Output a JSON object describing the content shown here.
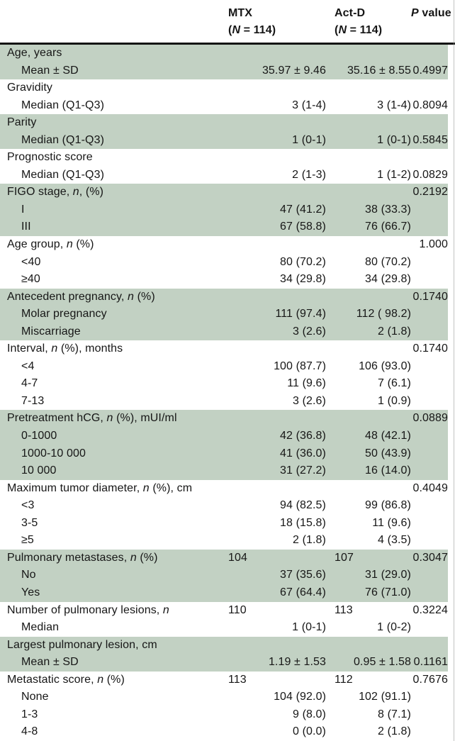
{
  "table": {
    "header": {
      "mtx_line1": "MTX",
      "mtx_line2": "(N = 114)",
      "actd_line1": "Act-D",
      "actd_line2": "(N = 114)",
      "p_label": "P value"
    },
    "colors": {
      "shaded_row_bg": "#c2d1c3",
      "header_rule": "#141414",
      "text": "#161616"
    },
    "groups": [
      {
        "shaded": true,
        "rows": [
          {
            "label": "Age, years",
            "indent": 0,
            "mtx": "",
            "actd": "",
            "p": ""
          },
          {
            "label": "Mean ± SD",
            "indent": 1,
            "mtx": "35.97 ± 9.46",
            "actd": "35.16 ± 8.55",
            "p": "0.4997"
          }
        ]
      },
      {
        "shaded": false,
        "rows": [
          {
            "label": "Gravidity",
            "indent": 0,
            "mtx": "",
            "actd": "",
            "p": ""
          },
          {
            "label": "Median (Q1-Q3)",
            "indent": 1,
            "mtx": "3 (1-4)",
            "actd": "3 (1-4)",
            "p": "0.8094"
          }
        ]
      },
      {
        "shaded": true,
        "rows": [
          {
            "label": "Parity",
            "indent": 0,
            "mtx": "",
            "actd": "",
            "p": ""
          },
          {
            "label": "Median (Q1-Q3)",
            "indent": 1,
            "mtx": "1 (0-1)",
            "actd": "1 (0-1)",
            "p": "0.5845"
          }
        ]
      },
      {
        "shaded": false,
        "rows": [
          {
            "label": "Prognostic score",
            "indent": 0,
            "mtx": "",
            "actd": "",
            "p": ""
          },
          {
            "label": "Median (Q1-Q3)",
            "indent": 1,
            "mtx": "2 (1-3)",
            "actd": "1 (1-2)",
            "p": "0.0829"
          }
        ]
      },
      {
        "shaded": true,
        "rows": [
          {
            "label": "FIGO stage, n, (%)",
            "indent": 0,
            "mtx": "",
            "actd": "",
            "p": "0.2192"
          },
          {
            "label": "I",
            "indent": 1,
            "mtx": "47 (41.2)",
            "actd": "38 (33.3)",
            "p": ""
          },
          {
            "label": "III",
            "indent": 1,
            "mtx": "67 (58.8)",
            "actd": "76 (66.7)",
            "p": ""
          }
        ]
      },
      {
        "shaded": false,
        "rows": [
          {
            "label": "Age group, n (%)",
            "indent": 0,
            "mtx": "",
            "actd": "",
            "p": "1.000"
          },
          {
            "label": "<40",
            "indent": 1,
            "mtx": "80 (70.2)",
            "actd": "80 (70.2)",
            "p": ""
          },
          {
            "label": "≥40",
            "indent": 1,
            "mtx": "34 (29.8)",
            "actd": "34 (29.8)",
            "p": ""
          }
        ]
      },
      {
        "shaded": true,
        "rows": [
          {
            "label": "Antecedent pregnancy, n (%)",
            "indent": 0,
            "mtx": "",
            "actd": "",
            "p": "0.1740"
          },
          {
            "label": "Molar pregnancy",
            "indent": 1,
            "mtx": "111 (97.4)",
            "actd": "112 ( 98.2)",
            "p": ""
          },
          {
            "label": "Miscarriage",
            "indent": 1,
            "mtx": "3 (2.6)",
            "actd": "2 (1.8)",
            "p": ""
          }
        ]
      },
      {
        "shaded": false,
        "rows": [
          {
            "label": "Interval, n (%), months",
            "indent": 0,
            "mtx": "",
            "actd": "",
            "p": "0.1740"
          },
          {
            "label": "<4",
            "indent": 1,
            "mtx": "100 (87.7)",
            "actd": "106 (93.0)",
            "p": ""
          },
          {
            "label": "4-7",
            "indent": 1,
            "mtx": "11 (9.6)",
            "actd": "7 (6.1)",
            "p": ""
          },
          {
            "label": "7-13",
            "indent": 1,
            "mtx": "3 (2.6)",
            "actd": "1 (0.9)",
            "p": ""
          }
        ]
      },
      {
        "shaded": true,
        "rows": [
          {
            "label": "Pretreatment hCG, n (%), mUI/ml",
            "indent": 0,
            "mtx": "",
            "actd": "",
            "p": "0.0889"
          },
          {
            "label": "0-1000",
            "indent": 1,
            "mtx": "42 (36.8)",
            "actd": "48 (42.1)",
            "p": ""
          },
          {
            "label": "1000-10 000",
            "indent": 1,
            "mtx": "41 (36.0)",
            "actd": "50 (43.9)",
            "p": ""
          },
          {
            "label": "10 000",
            "indent": 1,
            "mtx": "31 (27.2)",
            "actd": "16 (14.0)",
            "p": ""
          }
        ]
      },
      {
        "shaded": false,
        "rows": [
          {
            "label": "Maximum tumor diameter, n (%), cm",
            "indent": 0,
            "mtx": "",
            "actd": "",
            "p": "0.4049"
          },
          {
            "label": "<3",
            "indent": 1,
            "mtx": "94 (82.5)",
            "actd": "99 (86.8)",
            "p": ""
          },
          {
            "label": "3-5",
            "indent": 1,
            "mtx": "18 (15.8)",
            "actd": "11 (9.6)",
            "p": ""
          },
          {
            "label": "≥5",
            "indent": 1,
            "mtx": "2 (1.8)",
            "actd": "4 (3.5)",
            "p": ""
          }
        ]
      },
      {
        "shaded": true,
        "rows": [
          {
            "label": "Pulmonary metastases, n (%)",
            "indent": 0,
            "mtx": "104",
            "actd": "107",
            "p": "0.3047",
            "counts": true
          },
          {
            "label": "No",
            "indent": 1,
            "mtx": "37 (35.6)",
            "actd": "31 (29.0)",
            "p": ""
          },
          {
            "label": "Yes",
            "indent": 1,
            "mtx": "67 (64.4)",
            "actd": "76 (71.0)",
            "p": ""
          }
        ]
      },
      {
        "shaded": false,
        "rows": [
          {
            "label": "Number of pulmonary lesions, n",
            "indent": 0,
            "mtx": "110",
            "actd": "113",
            "p": "0.3224",
            "counts": true
          },
          {
            "label": "Median",
            "indent": 1,
            "mtx": "1 (0-1)",
            "actd": "1 (0-2)",
            "p": ""
          }
        ]
      },
      {
        "shaded": true,
        "rows": [
          {
            "label": "Largest pulmonary lesion, cm",
            "indent": 0,
            "mtx": "",
            "actd": "",
            "p": ""
          },
          {
            "label": "Mean ± SD",
            "indent": 1,
            "mtx": "1.19 ± 1.53",
            "actd": "0.95 ± 1.58",
            "p": "0.1161"
          }
        ]
      },
      {
        "shaded": false,
        "rows": [
          {
            "label": "Metastatic score, n (%)",
            "indent": 0,
            "mtx": "113",
            "actd": "112",
            "p": "0.7676",
            "counts": true
          },
          {
            "label": "None",
            "indent": 1,
            "mtx": "104 (92.0)",
            "actd": "102 (91.1)",
            "p": ""
          },
          {
            "label": "1-3",
            "indent": 1,
            "mtx": "9 (8.0)",
            "actd": "8 (7.1)",
            "p": ""
          },
          {
            "label": "4-8",
            "indent": 1,
            "mtx": "0 (0.0)",
            "actd": "2 (1.8)",
            "p": ""
          }
        ]
      }
    ]
  }
}
